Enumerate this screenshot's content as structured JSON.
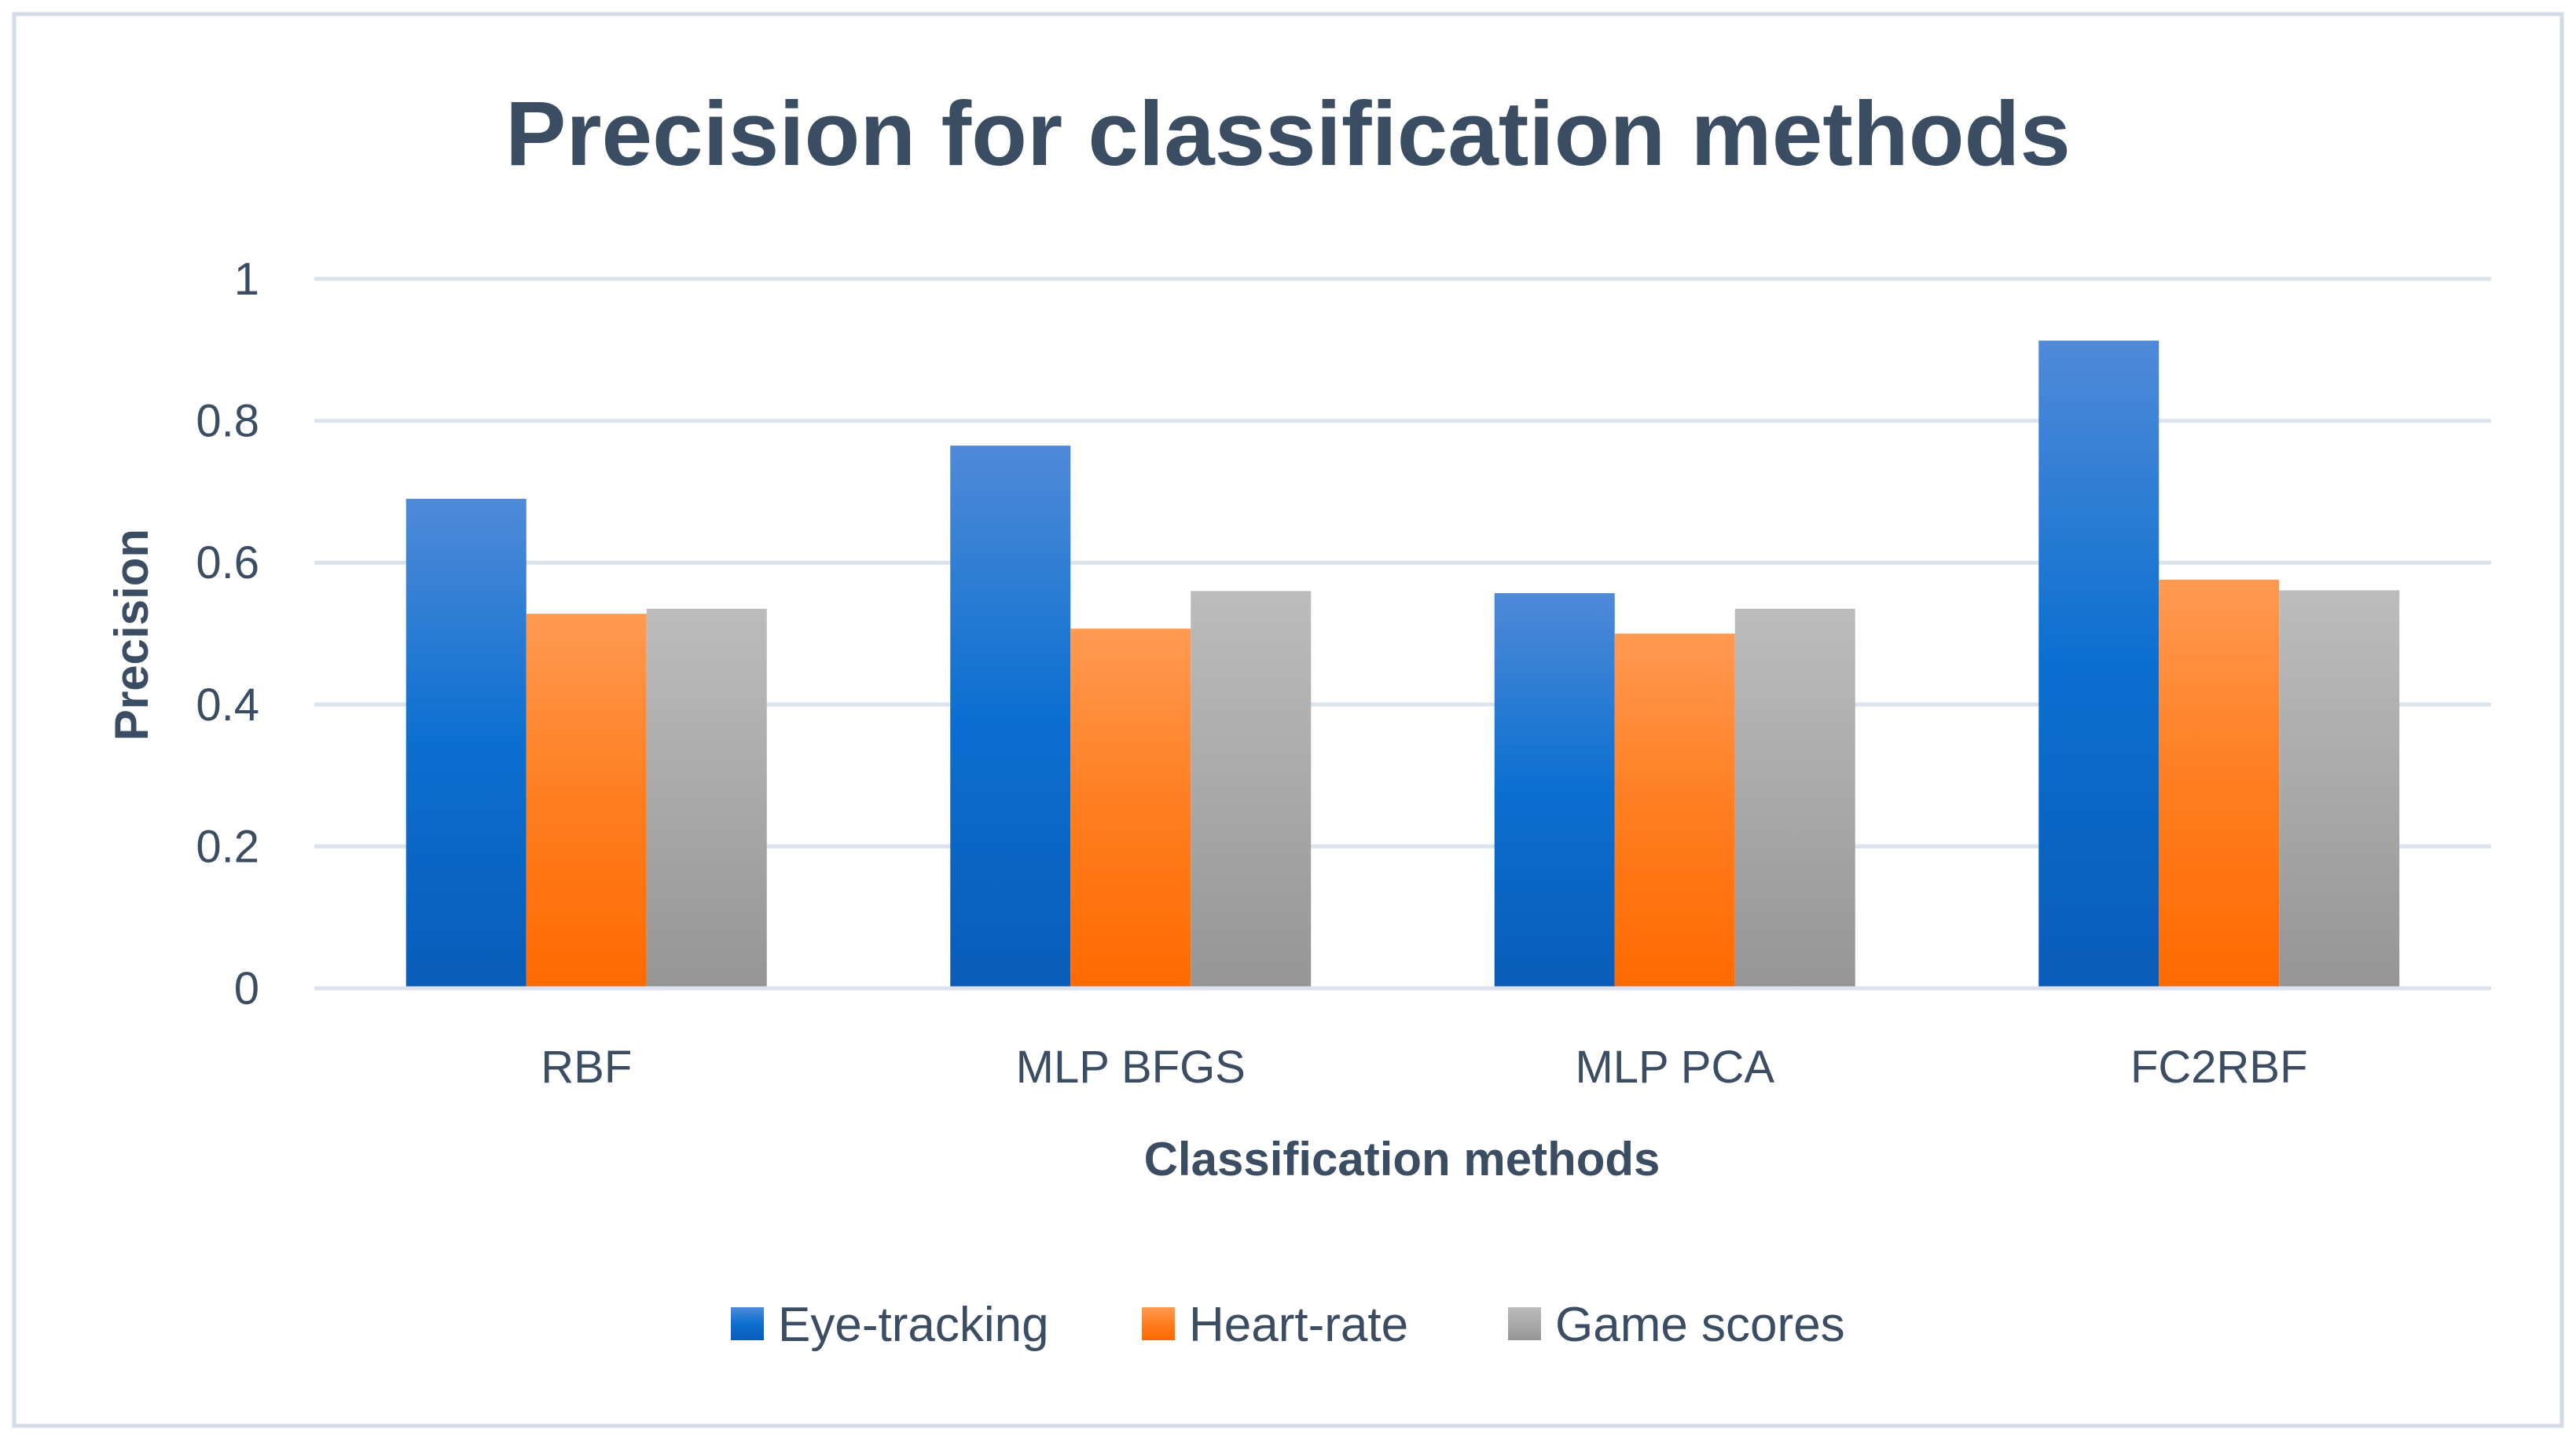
{
  "chart_data": {
    "type": "bar",
    "title": "Precision for classification methods",
    "xlabel": "Classification methods",
    "ylabel": "Precision",
    "ylim": [
      0,
      1
    ],
    "yticks": [
      "0",
      "0.2",
      "0.4",
      "0.6",
      "0.8",
      "1"
    ],
    "grid": true,
    "legend_position": "bottom",
    "categories": [
      "RBF",
      "MLP BFGS",
      "MLP PCA",
      "FC2RBF"
    ],
    "series": [
      {
        "name": "Eye-tracking",
        "values": [
          0.69,
          0.765,
          0.557,
          0.913
        ],
        "color": "#1f6fd1"
      },
      {
        "name": "Heart-rate",
        "values": [
          0.528,
          0.507,
          0.5,
          0.576
        ],
        "color": "#ff7a1f"
      },
      {
        "name": "Game scores",
        "values": [
          0.535,
          0.56,
          0.535,
          0.561
        ],
        "color": "#a8a8a8"
      }
    ]
  },
  "colors": {
    "text": "#3b4d63",
    "grid": "#dbe3ee",
    "frame": "#d3dbe6"
  }
}
